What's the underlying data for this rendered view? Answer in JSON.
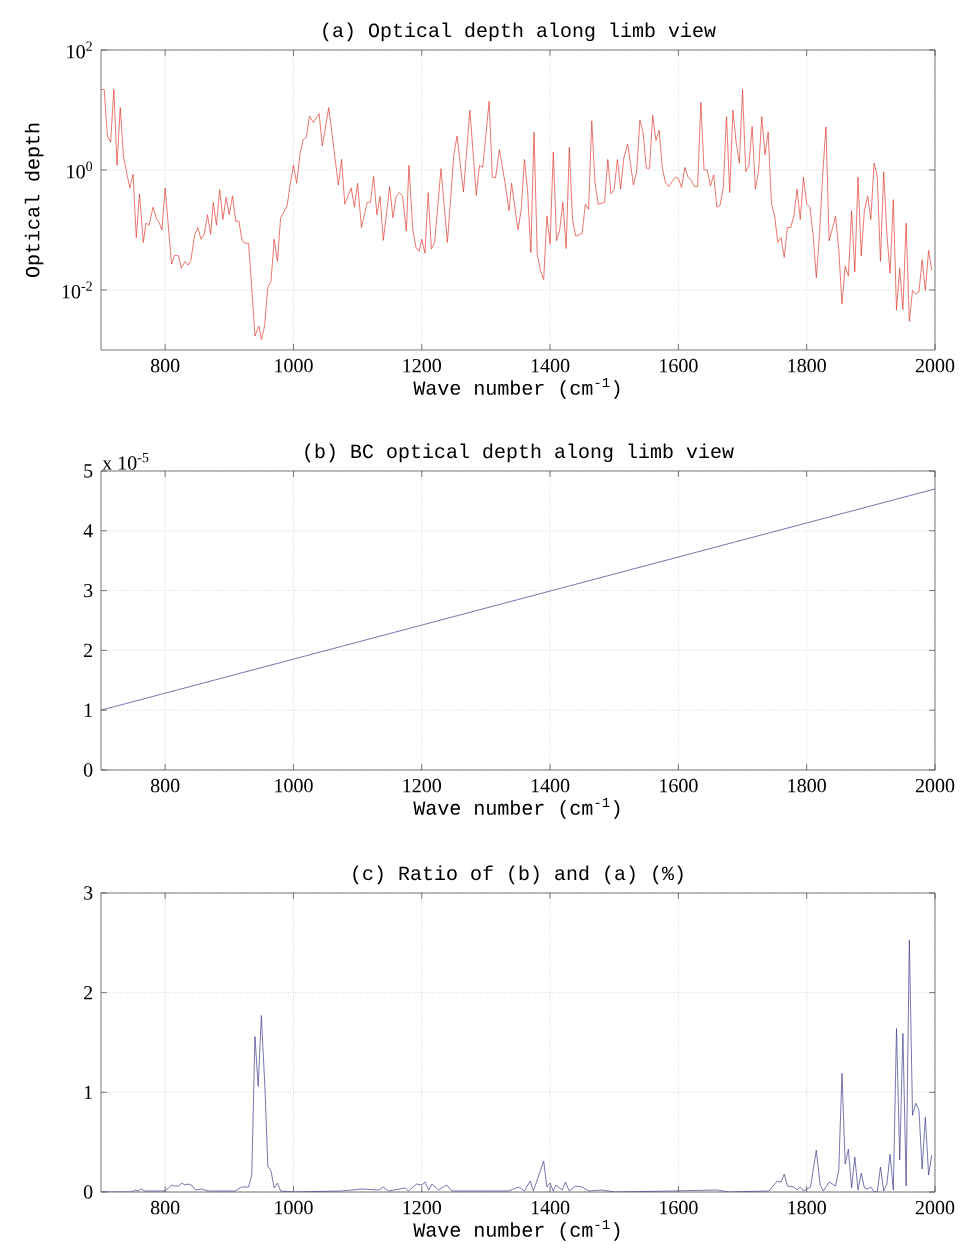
{
  "chart_data": [
    {
      "type": "line",
      "title": "(a) Optical depth along limb view",
      "xlabel": "Wave number (cm$^{-1}$)",
      "ylabel": "Optical depth",
      "log": "y",
      "grid": true,
      "xlim": [
        700,
        2000
      ],
      "ylim": [
        0.001,
        100
      ],
      "xticks": [
        800,
        1000,
        1200,
        1400,
        1600,
        1800,
        2000
      ],
      "yticks": [
        {
          "value": 0.01,
          "label": "10$^{-2}$"
        },
        {
          "value": 1,
          "label": "10$^{0}$"
        },
        {
          "value": 100,
          "label": "10$^{2}$"
        }
      ],
      "x": [
        700,
        705,
        710,
        715,
        720,
        725,
        730,
        735,
        741,
        745,
        750,
        755,
        760,
        766,
        770,
        775,
        781,
        786,
        791,
        795,
        800,
        810,
        815,
        821,
        825,
        831,
        836,
        840,
        846,
        851,
        856,
        861,
        866,
        871,
        875,
        880,
        885,
        890,
        895,
        900,
        905,
        910,
        915,
        920,
        925,
        930,
        935,
        940,
        946,
        950,
        955,
        960,
        965,
        970,
        975,
        980,
        985,
        990,
        995,
        1000,
        1005,
        1010,
        1015,
        1020,
        1025,
        1031,
        1040,
        1045,
        1055,
        1065,
        1070,
        1075,
        1080,
        1090,
        1095,
        1100,
        1106,
        1115,
        1120,
        1125,
        1130,
        1135,
        1140,
        1150,
        1155,
        1160,
        1165,
        1170,
        1176,
        1180,
        1186,
        1191,
        1196,
        1200,
        1205,
        1210,
        1215,
        1220,
        1230,
        1240,
        1250,
        1255,
        1265,
        1275,
        1285,
        1290,
        1295,
        1305,
        1310,
        1315,
        1321,
        1330,
        1336,
        1340,
        1350,
        1355,
        1360,
        1365,
        1370,
        1375,
        1380,
        1385,
        1390,
        1395,
        1400,
        1405,
        1410,
        1415,
        1420,
        1425,
        1430,
        1435,
        1440,
        1450,
        1455,
        1460,
        1465,
        1470,
        1475,
        1485,
        1490,
        1495,
        1500,
        1505,
        1510,
        1515,
        1521,
        1530,
        1535,
        1540,
        1545,
        1550,
        1555,
        1560,
        1565,
        1570,
        1575,
        1580,
        1585,
        1595,
        1600,
        1605,
        1610,
        1615,
        1620,
        1625,
        1630,
        1635,
        1640,
        1645,
        1650,
        1655,
        1660,
        1665,
        1670,
        1675,
        1680,
        1685,
        1690,
        1695,
        1700,
        1705,
        1710,
        1715,
        1720,
        1725,
        1730,
        1735,
        1740,
        1745,
        1750,
        1755,
        1760,
        1765,
        1770,
        1775,
        1780,
        1785,
        1790,
        1795,
        1800,
        1805,
        1810,
        1815,
        1820,
        1825,
        1830,
        1835,
        1845,
        1850,
        1855,
        1860,
        1865,
        1870,
        1875,
        1880,
        1885,
        1890,
        1895,
        1900,
        1905,
        1910,
        1915,
        1920,
        1925,
        1930,
        1935,
        1940,
        1945,
        1950,
        1955,
        1960,
        1965,
        1970,
        1975,
        1980,
        1985,
        1990,
        1995
      ],
      "series": [
        {
          "color": "#e03c31",
          "values": [
            22,
            22,
            3.7,
            2.9,
            22,
            1.2,
            11,
            1.7,
            0.8,
            0.5,
            0.85,
            0.074,
            0.4,
            0.062,
            0.13,
            0.12,
            0.24,
            0.16,
            0.13,
            0.1,
            0.5,
            0.027,
            0.038,
            0.037,
            0.023,
            0.03,
            0.026,
            0.031,
            0.083,
            0.11,
            0.07,
            0.085,
            0.18,
            0.085,
            0.29,
            0.12,
            0.47,
            0.15,
            0.35,
            0.18,
            0.37,
            0.14,
            0.14,
            0.066,
            0.06,
            0.06,
            0.011,
            0.0017,
            0.0025,
            0.0015,
            0.0025,
            0.011,
            0.014,
            0.07,
            0.03,
            0.16,
            0.2,
            0.25,
            0.58,
            1.2,
            0.6,
            1.8,
            3.2,
            3.5,
            7.9,
            6.2,
            8.7,
            2.5,
            11,
            1.5,
            0.56,
            1.5,
            0.27,
            0.5,
            0.24,
            0.6,
            0.11,
            0.29,
            0.29,
            0.78,
            0.18,
            0.36,
            0.067,
            0.53,
            0.16,
            0.36,
            0.42,
            0.37,
            0.096,
            1.2,
            0.1,
            0.051,
            0.044,
            0.07,
            0.041,
            0.42,
            0.048,
            0.062,
            1.05,
            0.062,
            1.8,
            3.7,
            0.43,
            10,
            0.38,
            1.2,
            1.1,
            14,
            0.76,
            0.74,
            2.2,
            0.6,
            0.21,
            0.6,
            0.1,
            0.22,
            1.5,
            0.45,
            0.042,
            4.3,
            0.039,
            0.021,
            0.015,
            0.17,
            0.058,
            2.0,
            0.066,
            0.1,
            0.29,
            0.049,
            2.4,
            0.15,
            0.079,
            0.088,
            0.27,
            0.22,
            6.6,
            0.61,
            0.27,
            0.29,
            1.5,
            0.4,
            0.48,
            1.5,
            0.48,
            1.6,
            2.7,
            0.56,
            0.95,
            6.8,
            4.2,
            1.07,
            1.07,
            8.2,
            3.1,
            4.6,
            1.07,
            0.61,
            0.53,
            0.76,
            0.72,
            0.51,
            1.1,
            0.76,
            0.67,
            0.53,
            0.53,
            13.5,
            1.0,
            1.0,
            0.54,
            0.83,
            0.24,
            0.26,
            0.51,
            7.7,
            0.42,
            10,
            2.9,
            1.3,
            22,
            0.94,
            1.2,
            5.3,
            0.48,
            0.95,
            7.7,
            1.8,
            4.3,
            0.28,
            0.17,
            0.062,
            0.075,
            0.035,
            0.11,
            0.11,
            0.17,
            0.48,
            0.15,
            0.76,
            0.27,
            0.24,
            0.085,
            0.016,
            0.085,
            0.85,
            5.2,
            0.066,
            0.17,
            0.048,
            0.0058,
            0.025,
            0.017,
            0.21,
            0.02,
            0.76,
            0.037,
            0.21,
            0.37,
            0.15,
            1.3,
            0.79,
            0.03,
            0.93,
            0.085,
            0.019,
            0.32,
            0.0046,
            0.023,
            0.0047,
            0.13,
            0.003,
            0.0098,
            0.0085,
            0.0093,
            0.032,
            0.0098,
            0.046,
            0.021
          ]
        }
      ]
    },
    {
      "type": "line",
      "title": "(b) BC optical depth along limb view",
      "xlabel": "Wave number (cm$^{-1}$)",
      "grid": true,
      "annotations": [
        "x 10$^{-5}$"
      ],
      "xlim": [
        700,
        2000
      ],
      "ylim": [
        0,
        5
      ],
      "xticks": [
        800,
        1000,
        1200,
        1400,
        1600,
        1800,
        2000
      ],
      "yticks": [
        0,
        1,
        2,
        3,
        4,
        5
      ],
      "x": [
        700,
        2000
      ],
      "series": [
        {
          "color": "#3c3c8c",
          "values": [
            1.0,
            4.7
          ]
        }
      ]
    },
    {
      "type": "line",
      "title": "(c) Ratio of (b) and (a) (%)",
      "xlabel": "Wave number (cm$^{-1}$)",
      "grid": true,
      "xlim": [
        700,
        2000
      ],
      "ylim": [
        0,
        3
      ],
      "xticks": [
        800,
        1000,
        1200,
        1400,
        1600,
        1800,
        2000
      ],
      "yticks": [
        0,
        1,
        2,
        3
      ],
      "x": [
        700,
        748,
        753,
        758,
        763,
        768,
        795,
        800,
        810,
        815,
        821,
        826,
        831,
        836,
        841,
        847,
        857,
        867,
        909,
        919,
        930,
        935,
        940,
        945,
        950,
        956,
        960,
        965,
        970,
        975,
        980,
        1000,
        1075,
        1107,
        1133,
        1140,
        1148,
        1174,
        1179,
        1192,
        1200,
        1205,
        1211,
        1216,
        1226,
        1239,
        1247,
        1335,
        1351,
        1360,
        1369,
        1374,
        1390,
        1395,
        1400,
        1405,
        1409,
        1419,
        1424,
        1430,
        1440,
        1450,
        1460,
        1481,
        1501,
        1590,
        1660,
        1678,
        1741,
        1754,
        1760,
        1765,
        1770,
        1780,
        1785,
        1790,
        1795,
        1806,
        1815,
        1821,
        1826,
        1835,
        1845,
        1850,
        1855,
        1860,
        1865,
        1870,
        1875,
        1880,
        1885,
        1890,
        1895,
        1900,
        1905,
        1910,
        1915,
        1920,
        1925,
        1930,
        1935,
        1940,
        1945,
        1950,
        1955,
        1960,
        1965,
        1970,
        1975,
        1980,
        1985,
        1990,
        1995
      ],
      "series": [
        {
          "color": "#3c3c8c",
          "values": [
            0,
            0,
            0.02,
            0.01,
            0.03,
            0.01,
            0.01,
            0.01,
            0.07,
            0.06,
            0.06,
            0.09,
            0.07,
            0.08,
            0.07,
            0.02,
            0.03,
            0.01,
            0.01,
            0.05,
            0.05,
            0.17,
            1.56,
            1.06,
            1.77,
            0.98,
            0.26,
            0.21,
            0.04,
            0.09,
            0.01,
            0,
            0.01,
            0.03,
            0.02,
            0.05,
            0.01,
            0.04,
            0.01,
            0.08,
            0.07,
            0.1,
            0.02,
            0.08,
            0.02,
            0.07,
            0.01,
            0.01,
            0.05,
            0.01,
            0.11,
            0.01,
            0.31,
            0.05,
            0.09,
            0.01,
            0.07,
            0.02,
            0.1,
            0.01,
            0.06,
            0.05,
            0.01,
            0.02,
            0,
            0.01,
            0.02,
            0,
            0.01,
            0.11,
            0.1,
            0.18,
            0.06,
            0.05,
            0.02,
            0.05,
            0.01,
            0.05,
            0.42,
            0.07,
            0.01,
            0.1,
            0.06,
            0.22,
            1.19,
            0.28,
            0.43,
            0.04,
            0.35,
            0.02,
            0.19,
            0.04,
            0.03,
            0.05,
            0,
            0,
            0.25,
            0.01,
            0.08,
            0.38,
            0.02,
            1.64,
            0.32,
            1.59,
            0.06,
            2.53,
            0.77,
            0.89,
            0.82,
            0.23,
            0.75,
            0.17,
            0.37
          ]
        }
      ]
    }
  ]
}
